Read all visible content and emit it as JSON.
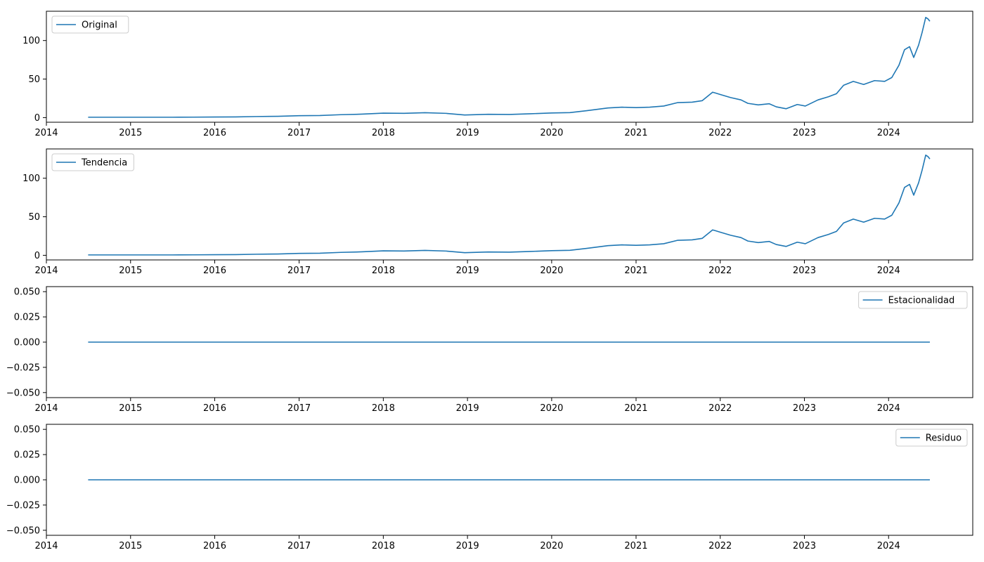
{
  "chart_data": [
    {
      "type": "line",
      "series": [
        {
          "name": "Original",
          "x": [
            "2014-07-01",
            "2014-10-01",
            "2015-01-01",
            "2015-04-01",
            "2015-07-01",
            "2015-10-01",
            "2016-01-01",
            "2016-04-01",
            "2016-07-01",
            "2016-10-01",
            "2017-01-01",
            "2017-04-01",
            "2017-07-01",
            "2017-10-01",
            "2018-01-01",
            "2018-04-01",
            "2018-07-01",
            "2018-10-01",
            "2018-12-20",
            "2019-04-01",
            "2019-07-01",
            "2019-10-01",
            "2020-01-01",
            "2020-03-20",
            "2020-06-01",
            "2020-09-01",
            "2020-11-01",
            "2021-01-01",
            "2021-03-01",
            "2021-05-01",
            "2021-07-01",
            "2021-09-01",
            "2021-10-15",
            "2021-11-29",
            "2022-01-01",
            "2022-02-15",
            "2022-04-01",
            "2022-05-01",
            "2022-06-15",
            "2022-08-01",
            "2022-09-01",
            "2022-10-14",
            "2022-12-01",
            "2023-01-05",
            "2023-03-01",
            "2023-04-15",
            "2023-05-20",
            "2023-06-20",
            "2023-08-01",
            "2023-09-15",
            "2023-11-01",
            "2023-12-15",
            "2024-01-15",
            "2024-02-15",
            "2024-03-10",
            "2024-04-01",
            "2024-04-19",
            "2024-05-10",
            "2024-05-25",
            "2024-06-10",
            "2024-06-20",
            "2024-06-28"
          ],
          "y": [
            0.5,
            0.5,
            0.5,
            0.5,
            0.5,
            0.6,
            0.8,
            0.9,
            1.4,
            1.7,
            2.5,
            2.7,
            3.8,
            4.5,
            5.8,
            5.6,
            6.4,
            5.5,
            3.4,
            4.3,
            4.1,
            5.0,
            6.0,
            6.5,
            9.0,
            12.5,
            13.5,
            13.0,
            13.5,
            15.0,
            19.5,
            20.0,
            22.0,
            33.0,
            30.0,
            26.0,
            23.0,
            18.5,
            16.5,
            18.0,
            14.0,
            11.5,
            17.0,
            15.0,
            23.0,
            27.0,
            31.0,
            42.0,
            47.0,
            43.0,
            48.0,
            47.0,
            52.0,
            68.0,
            88.0,
            92.0,
            78.0,
            94.0,
            110.0,
            130.0,
            128.0,
            125.0
          ]
        }
      ],
      "xlim": [
        "2014-01-01",
        "2024-12-31"
      ],
      "ylim": [
        -6,
        138
      ],
      "yticks": [
        0,
        50,
        100
      ],
      "xticks": [
        "2014",
        "2015",
        "2016",
        "2017",
        "2018",
        "2019",
        "2020",
        "2021",
        "2022",
        "2023",
        "2024"
      ],
      "legend": "upper left",
      "color": "#1f77b4"
    },
    {
      "type": "line",
      "series": [
        {
          "name": "Tendencia",
          "x": [
            "2014-07-01",
            "2014-10-01",
            "2015-01-01",
            "2015-04-01",
            "2015-07-01",
            "2015-10-01",
            "2016-01-01",
            "2016-04-01",
            "2016-07-01",
            "2016-10-01",
            "2017-01-01",
            "2017-04-01",
            "2017-07-01",
            "2017-10-01",
            "2018-01-01",
            "2018-04-01",
            "2018-07-01",
            "2018-10-01",
            "2018-12-20",
            "2019-04-01",
            "2019-07-01",
            "2019-10-01",
            "2020-01-01",
            "2020-03-20",
            "2020-06-01",
            "2020-09-01",
            "2020-11-01",
            "2021-01-01",
            "2021-03-01",
            "2021-05-01",
            "2021-07-01",
            "2021-09-01",
            "2021-10-15",
            "2021-11-29",
            "2022-01-01",
            "2022-02-15",
            "2022-04-01",
            "2022-05-01",
            "2022-06-15",
            "2022-08-01",
            "2022-09-01",
            "2022-10-14",
            "2022-12-01",
            "2023-01-05",
            "2023-03-01",
            "2023-04-15",
            "2023-05-20",
            "2023-06-20",
            "2023-08-01",
            "2023-09-15",
            "2023-11-01",
            "2023-12-15",
            "2024-01-15",
            "2024-02-15",
            "2024-03-10",
            "2024-04-01",
            "2024-04-19",
            "2024-05-10",
            "2024-05-25",
            "2024-06-10",
            "2024-06-20",
            "2024-06-28"
          ],
          "y": [
            0.5,
            0.5,
            0.5,
            0.5,
            0.5,
            0.6,
            0.8,
            0.9,
            1.4,
            1.7,
            2.5,
            2.7,
            3.8,
            4.5,
            5.8,
            5.6,
            6.4,
            5.5,
            3.4,
            4.3,
            4.1,
            5.0,
            6.0,
            6.5,
            9.0,
            12.5,
            13.5,
            13.0,
            13.5,
            15.0,
            19.5,
            20.0,
            22.0,
            33.0,
            30.0,
            26.0,
            23.0,
            18.5,
            16.5,
            18.0,
            14.0,
            11.5,
            17.0,
            15.0,
            23.0,
            27.0,
            31.0,
            42.0,
            47.0,
            43.0,
            48.0,
            47.0,
            52.0,
            68.0,
            88.0,
            92.0,
            78.0,
            94.0,
            110.0,
            130.0,
            128.0,
            125.0
          ]
        }
      ],
      "xlim": [
        "2014-01-01",
        "2024-12-31"
      ],
      "ylim": [
        -6,
        138
      ],
      "yticks": [
        0,
        50,
        100
      ],
      "xticks": [
        "2014",
        "2015",
        "2016",
        "2017",
        "2018",
        "2019",
        "2020",
        "2021",
        "2022",
        "2023",
        "2024"
      ],
      "legend": "upper left",
      "color": "#1f77b4"
    },
    {
      "type": "line",
      "series": [
        {
          "name": "Estacionalidad",
          "x": [
            "2014-07-01",
            "2024-06-28"
          ],
          "y": [
            0,
            0
          ]
        }
      ],
      "xlim": [
        "2014-01-01",
        "2024-12-31"
      ],
      "ylim": [
        -0.055,
        0.055
      ],
      "yticks": [
        -0.05,
        -0.025,
        0,
        0.025,
        0.05
      ],
      "ytick_labels": [
        "−0.050",
        "−0.025",
        "0.000",
        "0.025",
        "0.050"
      ],
      "xticks": [
        "2014",
        "2015",
        "2016",
        "2017",
        "2018",
        "2019",
        "2020",
        "2021",
        "2022",
        "2023",
        "2024"
      ],
      "legend": "upper right",
      "color": "#1f77b4"
    },
    {
      "type": "line",
      "series": [
        {
          "name": "Residuo",
          "x": [
            "2014-07-01",
            "2024-06-28"
          ],
          "y": [
            0,
            0
          ]
        }
      ],
      "xlim": [
        "2014-01-01",
        "2024-12-31"
      ],
      "ylim": [
        -0.055,
        0.055
      ],
      "yticks": [
        -0.05,
        -0.025,
        0,
        0.025,
        0.05
      ],
      "ytick_labels": [
        "−0.050",
        "−0.025",
        "0.000",
        "0.025",
        "0.050"
      ],
      "xticks": [
        "2014",
        "2015",
        "2016",
        "2017",
        "2018",
        "2019",
        "2020",
        "2021",
        "2022",
        "2023",
        "2024"
      ],
      "legend": "upper right",
      "color": "#1f77b4"
    }
  ]
}
